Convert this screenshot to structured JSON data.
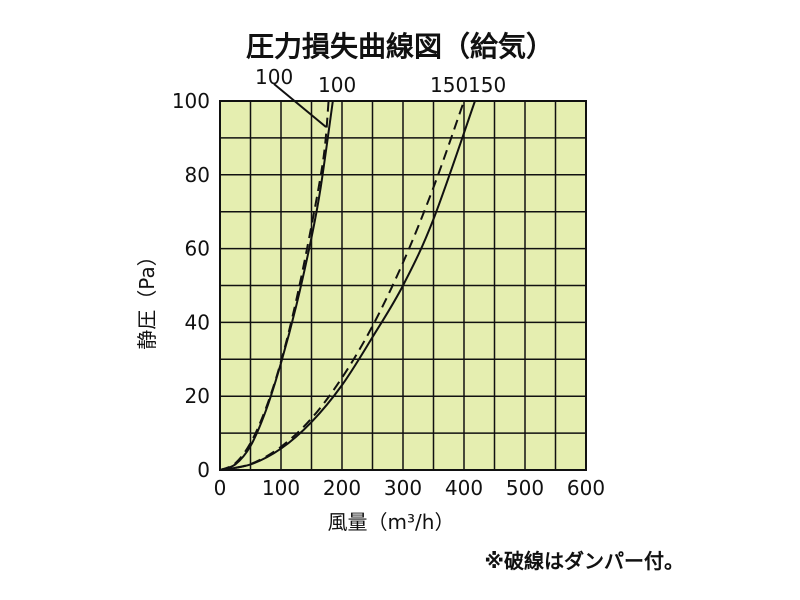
{
  "chart_data": {
    "type": "line",
    "title": "圧力損失曲線図（給気）",
    "xlabel": "風量（m³/h）",
    "ylabel": "静圧（Pa）",
    "note": "※破線はダンパー付。",
    "xlim": [
      0,
      600
    ],
    "ylim": [
      0,
      100
    ],
    "x_ticks": [
      0,
      100,
      200,
      300,
      400,
      500,
      600
    ],
    "y_ticks": [
      0,
      20,
      40,
      60,
      80,
      100
    ],
    "x_tick_labels": [
      "0",
      "100",
      "200",
      "300",
      "400",
      "500",
      "600"
    ],
    "y_tick_labels": [
      "0",
      "20",
      "40",
      "60",
      "80",
      "100"
    ],
    "grid": true,
    "series": [
      {
        "name": "100",
        "style": "solid",
        "color": "#111111",
        "x": [
          0,
          25,
          50,
          75,
          100,
          125,
          150,
          165,
          185
        ],
        "y": [
          0,
          1.5,
          6.5,
          16,
          29,
          44.5,
          63,
          76.5,
          100
        ]
      },
      {
        "name": "100",
        "style": "dashed",
        "color": "#111111",
        "x": [
          0,
          25,
          50,
          75,
          100,
          125,
          150,
          170,
          178
        ],
        "y": [
          0,
          1.8,
          7.3,
          16.6,
          29.4,
          46,
          66.2,
          85,
          100
        ]
      },
      {
        "name": "150",
        "style": "dashed",
        "color": "#111111",
        "x": [
          0,
          50,
          100,
          150,
          200,
          250,
          300,
          350,
          400
        ],
        "y": [
          0,
          1.6,
          6.3,
          14,
          25,
          39,
          56.2,
          76.6,
          100
        ]
      },
      {
        "name": "150",
        "style": "solid",
        "color": "#111111",
        "x": [
          0,
          50,
          100,
          150,
          200,
          250,
          300,
          350,
          418
        ],
        "y": [
          0,
          1.5,
          5.8,
          13,
          23,
          36,
          50,
          68,
          100
        ]
      }
    ],
    "colors": {
      "plot_background": "#e5eeb0",
      "grid": "#111111",
      "curve": "#111111"
    }
  }
}
